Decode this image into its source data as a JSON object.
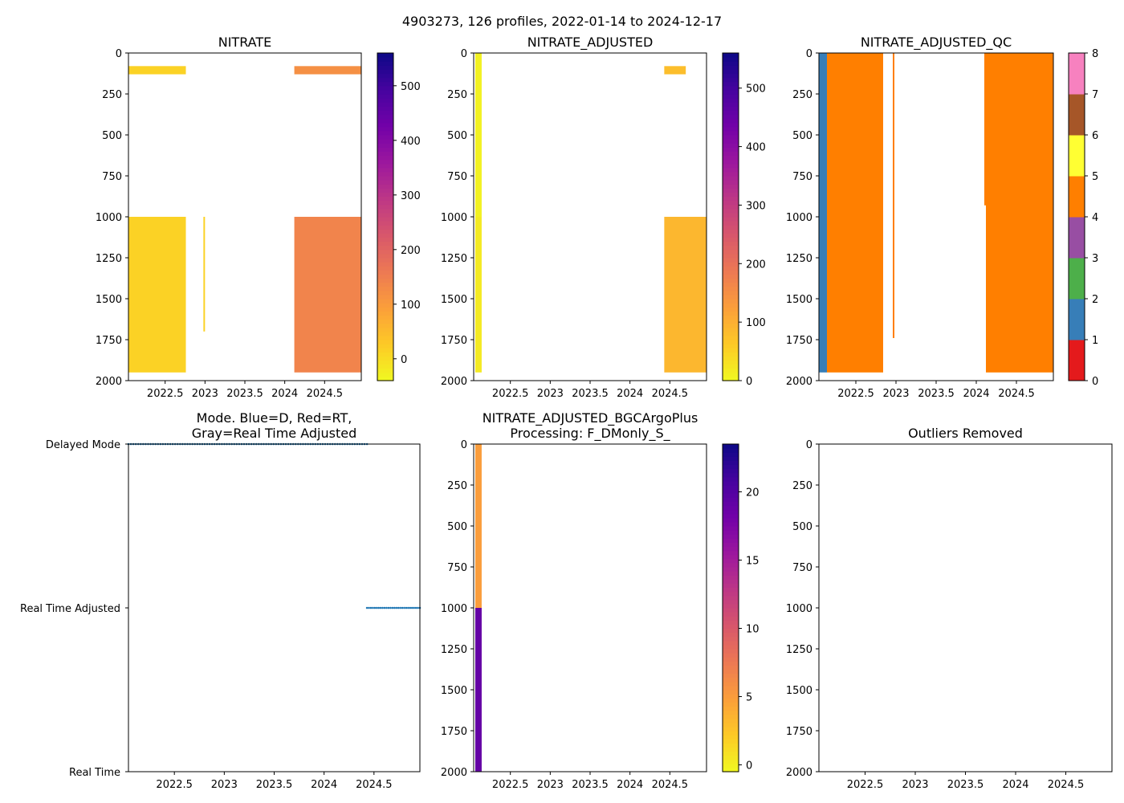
{
  "suptitle": "4903273, 126 profiles, 2022-01-14 to 2024-12-17",
  "chart_data": [
    {
      "id": "nitrate",
      "type": "heatmap",
      "title": "NITRATE",
      "xlim": [
        2022.04,
        2024.96
      ],
      "ylim": [
        2000,
        0
      ],
      "xticks": [
        2022.5,
        2023.0,
        2023.5,
        2024.0,
        2024.5
      ],
      "yticks": [
        0,
        250,
        500,
        750,
        1000,
        1250,
        1500,
        1750,
        2000
      ],
      "colormap": "plasma_r",
      "color_range": [
        -40,
        560
      ],
      "colorbar_ticks": [
        0,
        100,
        200,
        300,
        400,
        500
      ],
      "segments": [
        {
          "x_start": 2022.04,
          "x_end": 2022.76,
          "depth_top": 1000,
          "depth_bottom": 1950,
          "value": 15
        },
        {
          "x_start": 2022.98,
          "x_end": 2023.0,
          "depth_top": 1000,
          "depth_bottom": 1700,
          "value": 15
        },
        {
          "x_start": 2024.12,
          "x_end": 2024.96,
          "depth_top": 1000,
          "depth_bottom": 1950,
          "value": 140
        },
        {
          "x_start": 2022.04,
          "x_end": 2022.76,
          "depth_top": 80,
          "depth_bottom": 130,
          "value": 15
        },
        {
          "x_start": 2024.12,
          "x_end": 2024.96,
          "depth_top": 80,
          "depth_bottom": 130,
          "value": 120
        }
      ]
    },
    {
      "id": "nitrate_adjusted",
      "type": "heatmap",
      "title": "NITRATE_ADJUSTED",
      "xlim": [
        2022.04,
        2024.96
      ],
      "ylim": [
        2000,
        0
      ],
      "xticks": [
        2022.5,
        2023.0,
        2023.5,
        2024.0,
        2024.5
      ],
      "yticks": [
        0,
        250,
        500,
        750,
        1000,
        1250,
        1500,
        1750,
        2000
      ],
      "colormap": "plasma_r",
      "color_range": [
        0,
        560
      ],
      "colorbar_ticks": [
        0,
        100,
        200,
        300,
        400,
        500
      ],
      "segments": [
        {
          "x_start": 2022.06,
          "x_end": 2022.14,
          "depth_top": 0,
          "depth_bottom": 1000,
          "value": 10
        },
        {
          "x_start": 2022.06,
          "x_end": 2022.14,
          "depth_top": 1000,
          "depth_bottom": 1950,
          "value": 20
        },
        {
          "x_start": 2024.43,
          "x_end": 2024.96,
          "depth_top": 1000,
          "depth_bottom": 1950,
          "value": 90
        },
        {
          "x_start": 2024.43,
          "x_end": 2024.7,
          "depth_top": 80,
          "depth_bottom": 130,
          "value": 80
        }
      ]
    },
    {
      "id": "nitrate_adjusted_qc",
      "type": "heatmap",
      "title": "NITRATE_ADJUSTED_QC",
      "xlim": [
        2022.04,
        2024.96
      ],
      "ylim": [
        2000,
        0
      ],
      "xticks": [
        2022.5,
        2023.0,
        2023.5,
        2024.0,
        2024.5
      ],
      "yticks": [
        0,
        250,
        500,
        750,
        1000,
        1250,
        1500,
        1750,
        2000
      ],
      "colormap": "Set1 (QC flags)",
      "color_range": [
        0,
        8
      ],
      "colorbar_ticks": [
        0,
        1,
        2,
        3,
        4,
        5,
        6,
        7,
        8
      ],
      "qc_colors": [
        "#e41a1c",
        "#377eb8",
        "#4daf4a",
        "#984ea3",
        "#ff7f00",
        "#ffff33",
        "#a65628",
        "#f781bf",
        "#999999"
      ],
      "segments": [
        {
          "x_start": 2022.04,
          "x_end": 2022.14,
          "depth_top": 0,
          "depth_bottom": 1950,
          "qc": 1
        },
        {
          "x_start": 2022.14,
          "x_end": 2022.84,
          "depth_top": 0,
          "depth_bottom": 1950,
          "qc": 4
        },
        {
          "x_start": 2022.96,
          "x_end": 2022.98,
          "depth_top": 0,
          "depth_bottom": 1740,
          "qc": 4
        },
        {
          "x_start": 2024.1,
          "x_end": 2024.12,
          "depth_top": 0,
          "depth_bottom": 930,
          "qc": 4
        },
        {
          "x_start": 2024.12,
          "x_end": 2024.96,
          "depth_top": 0,
          "depth_bottom": 1950,
          "qc": 4
        }
      ]
    },
    {
      "id": "mode",
      "type": "scatter",
      "title": "Mode. Blue=D, Red=RT,\nGray=Real Time Adjusted",
      "xlim": [
        2022.04,
        2024.96
      ],
      "ylim": [
        0,
        2
      ],
      "xticks": [
        2022.5,
        2023.0,
        2023.5,
        2024.0,
        2024.5
      ],
      "ytick_labels": [
        "Real Time",
        "Real Time Adjusted",
        "Delayed Mode"
      ],
      "series": [
        {
          "name": "Delayed Mode",
          "x_start": 2022.04,
          "x_end": 2024.43,
          "y": 2,
          "count": 98
        },
        {
          "name": "Real Time Adjusted",
          "x_start": 2024.43,
          "x_end": 2024.96,
          "y": 1,
          "count": 28
        }
      ]
    },
    {
      "id": "bgcargoplus",
      "type": "heatmap",
      "title": "NITRATE_ADJUSTED_BGCArgoPlus\nProcessing: F_DMonly_S_",
      "xlim": [
        2022.04,
        2024.96
      ],
      "ylim": [
        2000,
        0
      ],
      "xticks": [
        2022.5,
        2023.0,
        2023.5,
        2024.0,
        2024.5
      ],
      "yticks": [
        0,
        250,
        500,
        750,
        1000,
        1250,
        1500,
        1750,
        2000
      ],
      "colormap": "plasma_r",
      "color_range": [
        -0.5,
        23.5
      ],
      "colorbar_ticks": [
        0,
        5,
        10,
        15,
        20
      ],
      "segments": [
        {
          "x_start": 2022.06,
          "x_end": 2022.14,
          "depth_top": 0,
          "depth_bottom": 1000,
          "value": 5
        },
        {
          "x_start": 2022.06,
          "x_end": 2022.14,
          "depth_top": 1000,
          "depth_bottom": 2000,
          "value": 19
        }
      ]
    },
    {
      "id": "outliers",
      "type": "scatter",
      "title": "Outliers Removed",
      "xlim": [
        2022.04,
        2024.96
      ],
      "ylim": [
        2000,
        0
      ],
      "xticks": [
        2022.5,
        2023.0,
        2023.5,
        2024.0,
        2024.5
      ],
      "yticks": [
        0,
        250,
        500,
        750,
        1000,
        1250,
        1500,
        1750,
        2000
      ],
      "series": []
    }
  ]
}
